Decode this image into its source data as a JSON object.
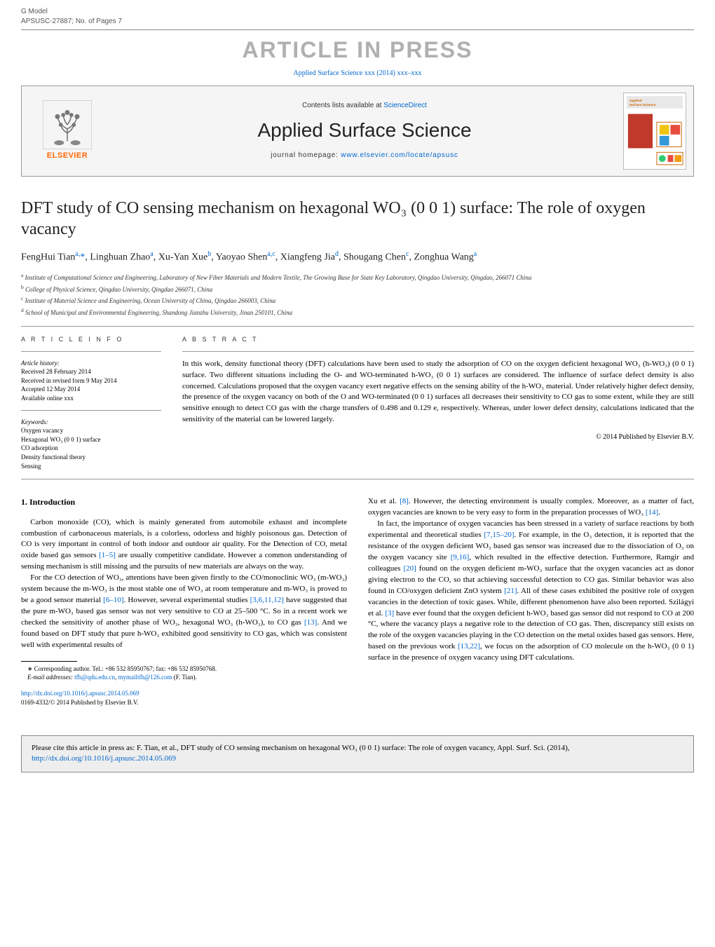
{
  "header": {
    "gmodel": "G Model",
    "docid": "APSUSC-27887;   No. of Pages 7",
    "in_press": "ARTICLE IN PRESS",
    "ref_line_prefix": "Applied Surface Science xxx (2014) xxx–xxx"
  },
  "banner": {
    "contents_prefix": "Contents lists available at ",
    "sciencedirect": "ScienceDirect",
    "journal_name": "Applied Surface Science",
    "homepage_prefix": "journal homepage: ",
    "homepage_url": "www.elsevier.com/locate/apsusc",
    "elsevier": "ELSEVIER",
    "cover_title": "Applied Surface Science"
  },
  "title": "DFT study of CO sensing mechanism on hexagonal WO₃ (0 0 1) surface: The role of oxygen vacancy",
  "authors_html": "FengHui Tian<sup>a,</sup><span class='corr'>*</span>, Linghuan Zhao<sup>a</sup>, Xu-Yan Xue<sup>b</sup>, Yaoyao Shen<sup>a,c</sup>, Xiangfeng Jia<sup>d</sup>, Shougang Chen<sup>c</sup>, Zonghua Wang<sup>a</sup>",
  "affiliations": [
    {
      "sup": "a",
      "text": "Institute of Computational Science and Engineering, Laboratory of New Fiber Materials and Modern Textile, The Growing Base for State Key Laboratory, Qingdao University, Qingdao, 266071 China"
    },
    {
      "sup": "b",
      "text": "College of Physical Science, Qingdao University, Qingdao 266071, China"
    },
    {
      "sup": "c",
      "text": "Institute of Material Science and Engineering, Ocean University of China, Qingdao 266003, China"
    },
    {
      "sup": "d",
      "text": "School of Municipal and Environmental Engineering, Shandong Jianzhu University, Jinan 250101, China"
    }
  ],
  "article_info_label": "A R T I C L E   I N F O",
  "abstract_label": "A B S T R A C T",
  "history": {
    "label": "Article history:",
    "items": [
      "Received 28 February 2014",
      "Received in revised form 9 May 2014",
      "Accepted 12 May 2014",
      "Available online xxx"
    ]
  },
  "keywords": {
    "label": "Keywords:",
    "items": [
      "Oxygen vacancy",
      "Hexagonal WO₃ (0 0 1) surface",
      "CO adsorption",
      "Density functional theory",
      "Sensing"
    ]
  },
  "abstract": "In this work, density functional theory (DFT) calculations have been used to study the adsorption of CO on the oxygen deficient hexagonal WO₃ (h-WO₃) (0 0 1) surface. Two different situations including the O- and WO-terminated h-WO₃ (0 0 1) surfaces are considered. The influence of surface defect density is also concerned. Calculations proposed that the oxygen vacancy exert negative effects on the sensing ability of the h-WO₃ material. Under relatively higher defect density, the presence of the oxygen vacancy on both of the O and WO-terminated (0 0 1) surfaces all decreases their sensitivity to CO gas to some extent, while they are still sensitive enough to detect CO gas with the charge transfers of 0.498 and 0.129 e, respectively. Whereas, under lower defect density, calculations indicated that the sensitivity of the material can be lowered largely.",
  "copyright": "© 2014 Published by Elsevier B.V.",
  "intro_heading": "1.  Introduction",
  "col1_paras": [
    "Carbon monoxide (CO), which is mainly generated from automobile exhaust and incomplete combustion of carbonaceous materials, is a colorless, odorless and highly poisonous gas. Detection of CO is very important in control of both indoor and outdoor air quality. For the Detection of CO, metal oxide based gas sensors <span class='ref'>[1–5]</span> are usually competitive candidate. However a common understanding of sensing mechanism is still missing and the pursuits of new materials are always on the way.",
    "For the CO detection of WO₃, attentions have been given firstly to the CO/monoclinic WO₃ (m-WO₃) system because the m-WO₃ is the most stable one of WO₃ at room temperature and m-WO₃ is proved to be a good sensor material <span class='ref'>[6–10]</span>. However, several experimental studies <span class='ref'>[3,6,11,12]</span> have suggested that the pure m-WO₃ based gas sensor was not very sensitive to CO at 25–500 °C. So in a recent work we checked the sensitivity of another phase of WO₃, hexagonal WO₃ (h-WO₃), to CO gas <span class='ref'>[13]</span>. And we found based on DFT study that pure h-WO₃ exhibited good sensitivity to CO gas, which was consistent well with experimental results of"
  ],
  "col2_paras": [
    "Xu et al. <span class='ref'>[8]</span>. However, the detecting environment is usually complex. Moreover, as a matter of fact, oxygen vacancies are known to be very easy to form in the preparation processes of WO₃ <span class='ref'>[14]</span>.",
    "In fact, the importance of oxygen vacancies has been stressed in a variety of surface reactions by both experimental and theoretical studies <span class='ref'>[7,15–20]</span>. For example, in the O₃ detection, it is reported that the resistance of the oxygen deficient WO₃ based gas sensor was increased due to the dissociation of O₃ on the oxygen vacancy site <span class='ref'>[9,16]</span>, which resulted in the effective detection. Furthermore, Ramgir and colleagues <span class='ref'>[20]</span> found on the oxygen deficient m-WO₃ surface that the oxygen vacancies act as donor giving electron to the CO, so that achieving successful detection to CO gas. Similar behavior was also found in CO/oxygen deficient ZnO system <span class='ref'>[21]</span>. All of these cases exhibited the positive role of oxygen vacancies in the detection of toxic gases. While, different phenomenon have also been reported. Szilágyi et al. <span class='ref'>[3]</span> have ever found that the oxygen deficient h-WO₃ based gas sensor did not respond to CO at 200 °C, where the vacancy plays a negative role to the detection of CO gas. Then, discrepancy still exists on the role of the oxygen vacancies playing in the CO detection on the metal oxides based gas sensors. Here, based on the previous work <span class='ref'>[13,22]</span>, we focus on the adsorption of CO molecule on the h-WO₃ (0 0 1) surface in the presence of oxygen vacancy using DFT calculations."
  ],
  "footnote": {
    "corr": "∗ Corresponding author. Tel.: +86 532 85950767; fax: +86 532 85950768.",
    "email_label": "E-mail addresses: ",
    "email1": "tfh@qdu.edu.cn",
    "email2": "mymailtfh@126.com",
    "email_author": " (F. Tian)."
  },
  "doi": {
    "url": "http://dx.doi.org/10.1016/j.apsusc.2014.05.069",
    "issn_line": "0169-4332/© 2014 Published by Elsevier B.V."
  },
  "citebox": {
    "prefix": "Please cite this article in press as: F. Tian, et al., DFT study of CO sensing mechanism on hexagonal WO₃ (0 0 1) surface: The role of oxygen vacancy, Appl. Surf. Sci. (2014), ",
    "url": "http://dx.doi.org/10.1016/j.apsusc.2014.05.069"
  },
  "colors": {
    "link": "#0066cc",
    "banner_bg": "#f5f5f5",
    "elsevier_orange": "#ff6600",
    "citebox_bg": "#eeeeee",
    "in_press_gray": "#b0b0b0"
  }
}
